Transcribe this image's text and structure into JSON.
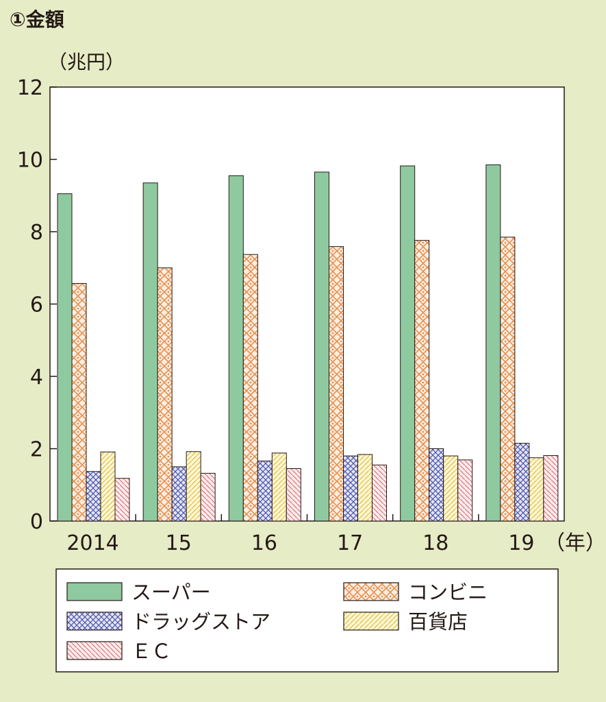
{
  "chart_data": {
    "type": "bar",
    "title": "①金額",
    "ylabel": "（兆円）",
    "xlabel": "（年）",
    "categories": [
      "2014",
      "15",
      "16",
      "17",
      "18",
      "19"
    ],
    "ylim": [
      0,
      12
    ],
    "yticks": [
      "0",
      "2",
      "4",
      "6",
      "8",
      "10",
      "12"
    ],
    "grid": false,
    "legend_placement": "bottom",
    "series": [
      {
        "name": "スーパー",
        "values": [
          9.05,
          9.35,
          9.55,
          9.65,
          9.82,
          9.85
        ],
        "color": "#8fc9a0",
        "pattern": "solid"
      },
      {
        "name": "コンビニ",
        "values": [
          6.57,
          7.0,
          7.37,
          7.59,
          7.76,
          7.85
        ],
        "color": "#e8924e",
        "pattern": "dots"
      },
      {
        "name": "ドラッグストア",
        "values": [
          1.37,
          1.5,
          1.66,
          1.8,
          2.0,
          2.15
        ],
        "color": "#4d55a8",
        "pattern": "crosshatch"
      },
      {
        "name": "百貨店",
        "values": [
          1.91,
          1.92,
          1.88,
          1.84,
          1.8,
          1.75
        ],
        "color": "#e0c040",
        "pattern": "diagonal"
      },
      {
        "name": "ＥＣ",
        "values": [
          1.18,
          1.32,
          1.45,
          1.55,
          1.69,
          1.81
        ],
        "color": "#d97a80",
        "pattern": "diagonal-reverse"
      }
    ]
  }
}
